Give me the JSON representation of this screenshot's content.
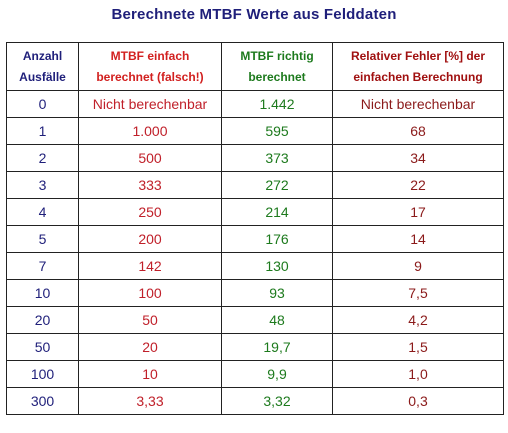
{
  "title": "Berechnete MTBF Werte aus Felddaten",
  "header": {
    "col1": [
      "Anzahl",
      "Ausfälle"
    ],
    "col2": [
      "MTBF einfach",
      "berechnet (falsch!)"
    ],
    "col3": [
      "MTBF richtig",
      "berechnet"
    ],
    "col4": [
      "Relativer Fehler [%] der",
      "einfachen Berechnung"
    ]
  },
  "rows": [
    [
      "0",
      "Nicht berechenbar",
      "1.442",
      "Nicht berechenbar"
    ],
    [
      "1",
      "1.000",
      "595",
      "68"
    ],
    [
      "2",
      "500",
      "373",
      "34"
    ],
    [
      "3",
      "333",
      "272",
      "22"
    ],
    [
      "4",
      "250",
      "214",
      "17"
    ],
    [
      "5",
      "200",
      "176",
      "14"
    ],
    [
      "7",
      "142",
      "130",
      "9"
    ],
    [
      "10",
      "100",
      "93",
      "7,5"
    ],
    [
      "20",
      "50",
      "48",
      "4,2"
    ],
    [
      "50",
      "20",
      "19,7",
      "1,5"
    ],
    [
      "100",
      "10",
      "9,9",
      "1,0"
    ],
    [
      "300",
      "3,33",
      "3,32",
      "0,3"
    ]
  ],
  "colors": {
    "col1": "#1f1f7a",
    "col2": "#c0202a",
    "col3": "#1d7a1d",
    "col4": "#8b1a1a"
  }
}
